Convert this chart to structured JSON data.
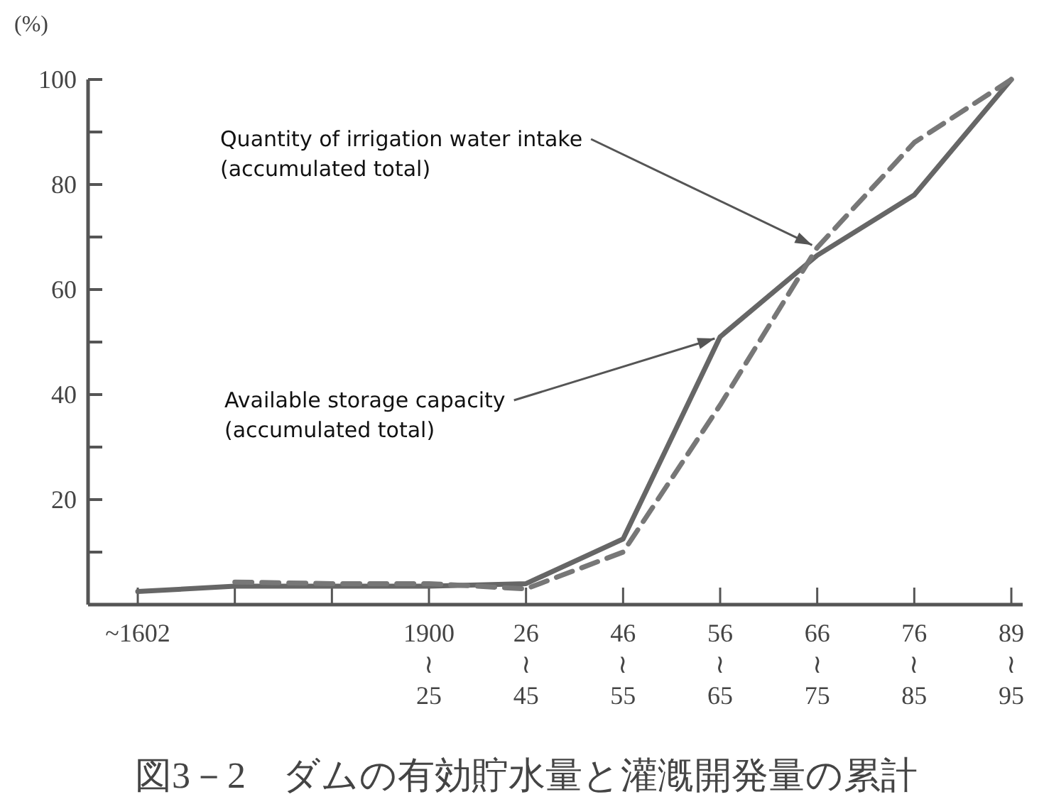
{
  "chart_data": {
    "type": "line",
    "title": "図3－2　ダムの有効貯水量と灌漑開発量の累計",
    "ylabel": "(%)",
    "categories": [
      "~1602",
      null,
      null,
      "1900\n≀\n25",
      "26\n≀\n45",
      "46\n≀\n55",
      "56\n≀\n65",
      "66\n≀\n75",
      "76\n≀\n85",
      "89\n≀\n95"
    ],
    "series": [
      {
        "color": "#666666",
        "line_style": "solid",
        "values": [
          2.5,
          3.5,
          3.5,
          3.5,
          4,
          12.5,
          51,
          66.5,
          78,
          100
        ]
      },
      {
        "color": "#777777",
        "line_style": "dashed",
        "values": [
          null,
          4.3,
          4,
          4,
          3,
          10,
          38,
          68,
          88,
          100
        ]
      }
    ],
    "ylim": [
      0,
      100
    ],
    "yticks": [
      {
        "value": 10,
        "label": null
      },
      20,
      {
        "value": 30,
        "label": null
      },
      40,
      {
        "value": 50,
        "label": null
      },
      60,
      {
        "value": 70,
        "label": null
      },
      80,
      {
        "value": 90,
        "label": null
      },
      100
    ],
    "annotations": [
      {
        "text": "Quantity of irrigation water intake\n(accumulated total)",
        "x": "66\n≀\n75",
        "y": 68
      },
      {
        "text": "Available storage capacity\n(accumulated total)",
        "x": "56\n≀\n65",
        "y": 51
      }
    ],
    "grid": false
  }
}
